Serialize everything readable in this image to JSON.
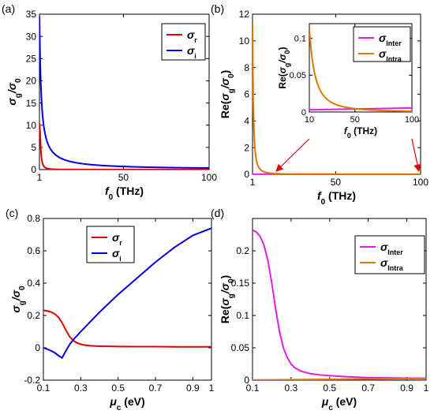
{
  "chart_data": [
    {
      "id": "a",
      "type": "line",
      "panel_label": "(a)",
      "xlabel": {
        "main": "f",
        "sub": "0",
        "unit": " (THz)"
      },
      "ylabel": {
        "main": "σ",
        "sub": "g",
        "rest": "/σ",
        "sub2": "0"
      },
      "xlim": [
        1,
        100
      ],
      "ylim": [
        0,
        35
      ],
      "xticks": [
        1,
        50,
        100
      ],
      "yticks": [
        0,
        5,
        10,
        15,
        20,
        25,
        30,
        35
      ],
      "grid": false,
      "legend": "top-right",
      "series": [
        {
          "name": "σ",
          "name_sub": "r",
          "color": "#e00000",
          "formula": "drude_real",
          "scale": 0.01,
          "tau": 0.05
        },
        {
          "name": "σ",
          "name_sub": "i",
          "color": "#0000e0",
          "formula": "drude_imag",
          "scale": 0.01,
          "tau": 0.05
        }
      ]
    },
    {
      "id": "b",
      "type": "line",
      "panel_label": "(b)",
      "xlabel": {
        "main": "f",
        "sub": "0",
        "unit": " (THz)"
      },
      "ylabel": {
        "main": "Re(",
        "mid": "σ",
        "sub": "g",
        "rest": "/σ",
        "sub2": "0",
        "end": ")"
      },
      "xlim": [
        1,
        100
      ],
      "ylim": [
        0,
        12
      ],
      "xticks": [
        1,
        50,
        100
      ],
      "yticks": [
        0,
        2,
        4,
        6,
        8,
        10,
        12
      ],
      "grid": false,
      "legend": "top-right",
      "annotation_points": [
        15,
        99
      ],
      "series": [
        {
          "name": "σ",
          "name_sub": "Inter",
          "color": "#e020e0",
          "formula": "constant",
          "value": 0.005
        },
        {
          "name": "σ",
          "name_sub": "Intra",
          "color": "#e07800",
          "formula": "drude_real",
          "scale": 11.3
        }
      ],
      "inset": {
        "xlim": [
          10,
          100
        ],
        "ylim": [
          0,
          0.12
        ],
        "xticks": [
          10,
          50,
          100
        ],
        "yticks": [
          0,
          0.05,
          0.1
        ],
        "xlabel": {
          "main": "f",
          "sub": "0",
          "unit": " (THz)"
        },
        "ylabel": {
          "main": "Re(",
          "mid": "σ",
          "sub": "g",
          "rest": "/σ",
          "sub2": "0",
          "end": ")"
        },
        "series": [
          {
            "name": "σ",
            "name_sub": "Inter",
            "color": "#e020e0",
            "formula": "linear",
            "y0": 0.003,
            "y1": 0.0055
          },
          {
            "name": "σ",
            "name_sub": "Intra",
            "color": "#e07800",
            "formula": "drude_real",
            "scale": 11.3
          }
        ]
      }
    },
    {
      "id": "c",
      "type": "line",
      "panel_label": "(c)",
      "xlabel": {
        "main": "μ",
        "sub": "c",
        "unit": " (eV)"
      },
      "ylabel": {
        "main": "σ",
        "sub": "g",
        "rest": "/σ",
        "sub2": "0"
      },
      "xlim": [
        0.1,
        1
      ],
      "ylim": [
        -0.2,
        0.8
      ],
      "xticks": [
        0.1,
        0.3,
        0.5,
        0.7,
        0.9,
        1
      ],
      "yticks": [
        -0.2,
        0,
        0.2,
        0.4,
        0.6,
        0.8
      ],
      "grid": false,
      "legend": "top-left",
      "series": [
        {
          "name": "σ",
          "name_sub": "r",
          "color": "#e00000",
          "x": [
            0.1,
            0.12,
            0.14,
            0.16,
            0.18,
            0.2,
            0.22,
            0.24,
            0.26,
            0.28,
            0.3,
            0.32,
            0.35,
            0.4,
            0.45,
            0.5,
            0.6,
            0.7,
            0.8,
            0.9,
            1.0
          ],
          "y": [
            0.232,
            0.228,
            0.222,
            0.21,
            0.19,
            0.155,
            0.11,
            0.07,
            0.045,
            0.03,
            0.022,
            0.017,
            0.013,
            0.01,
            0.009,
            0.008,
            0.007,
            0.007,
            0.006,
            0.006,
            0.006
          ]
        },
        {
          "name": "σ",
          "name_sub": "i",
          "color": "#0000e0",
          "x": [
            0.1,
            0.12,
            0.14,
            0.16,
            0.18,
            0.2,
            0.22,
            0.24,
            0.26,
            0.28,
            0.3,
            0.35,
            0.4,
            0.5,
            0.6,
            0.7,
            0.8,
            0.9,
            1.0
          ],
          "y": [
            0.0,
            -0.008,
            -0.018,
            -0.03,
            -0.048,
            -0.062,
            -0.02,
            0.02,
            0.05,
            0.075,
            0.1,
            0.16,
            0.22,
            0.33,
            0.43,
            0.53,
            0.62,
            0.695,
            0.74
          ]
        }
      ]
    },
    {
      "id": "d",
      "type": "line",
      "panel_label": "(d)",
      "xlabel": {
        "main": "μ",
        "sub": "c",
        "unit": " (eV)"
      },
      "ylabel": {
        "main": "Re(",
        "mid": "σ",
        "sub": "g",
        "rest": "/σ",
        "sub2": "0",
        "end": ")"
      },
      "xlim": [
        0.1,
        1
      ],
      "ylim": [
        0,
        0.25
      ],
      "xticks": [
        0.1,
        0.3,
        0.5,
        0.7,
        0.9,
        1
      ],
      "yticks": [
        0,
        0.05,
        0.1,
        0.15,
        0.2
      ],
      "grid": false,
      "legend": "top-right",
      "series": [
        {
          "name": "σ",
          "name_sub": "Inter",
          "color": "#e020e0",
          "x": [
            0.1,
            0.12,
            0.14,
            0.16,
            0.18,
            0.2,
            0.21,
            0.22,
            0.24,
            0.26,
            0.28,
            0.3,
            0.32,
            0.35,
            0.4,
            0.45,
            0.5,
            0.6,
            0.7,
            0.8,
            0.9,
            1.0
          ],
          "y": [
            0.232,
            0.229,
            0.222,
            0.208,
            0.185,
            0.15,
            0.13,
            0.11,
            0.075,
            0.05,
            0.035,
            0.025,
            0.019,
            0.014,
            0.01,
            0.008,
            0.007,
            0.005,
            0.004,
            0.0035,
            0.003,
            0.003
          ]
        },
        {
          "name": "σ",
          "name_sub": "Intra",
          "color": "#e07800",
          "x": [
            0.1,
            0.3,
            0.5,
            0.7,
            0.9,
            1.0
          ],
          "y": [
            0.0003,
            0.0008,
            0.0013,
            0.0018,
            0.0023,
            0.0025
          ]
        }
      ]
    }
  ]
}
